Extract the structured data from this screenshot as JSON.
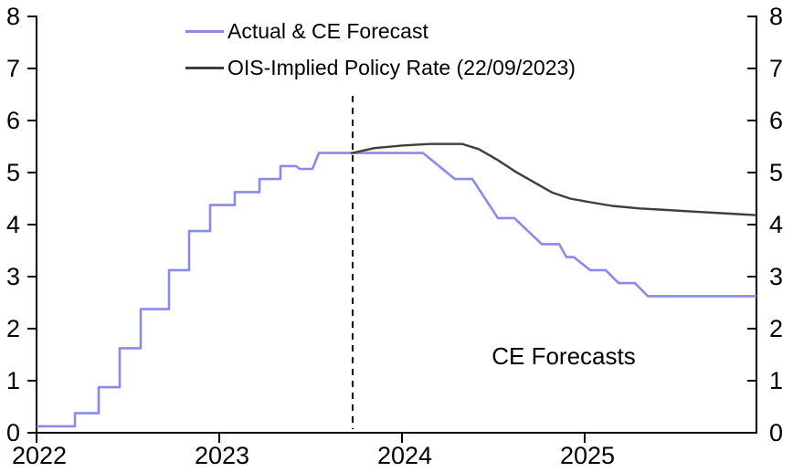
{
  "legend": {
    "items": [
      {
        "label": "Actual & CE Forecast",
        "color": "#8a89f0"
      },
      {
        "label": "OIS-Implied Policy Rate (22/09/2023)",
        "color": "#3e3e3e"
      }
    ]
  },
  "annotations": {
    "forecast_label": "CE Forecasts"
  },
  "colors": {
    "actual_line": "#8a89f0",
    "ois_line": "#3e3e3e",
    "axis": "#000000",
    "background": "#ffffff"
  },
  "chart_data": {
    "type": "line",
    "title": "",
    "xlabel": "",
    "ylabel": "",
    "grid": false,
    "legend_position": "top-left-inside",
    "dual_y_axis": true,
    "xlim": [
      2022,
      2025.94
    ],
    "ylim": [
      0,
      8
    ],
    "x_ticks": [
      2022,
      2023,
      2024,
      2025
    ],
    "y_ticks": [
      0,
      1,
      2,
      3,
      4,
      5,
      6,
      7,
      8
    ],
    "vline": {
      "x": 2023.73,
      "y_from": 0.07,
      "y_to": 6.47,
      "style": "dashed",
      "color": "#000000",
      "meaning": "forecast start 22/09/2023"
    },
    "annotation": {
      "text": "CE Forecasts",
      "x": 2024.885,
      "y": 1.46
    },
    "series": [
      {
        "name": "Actual & CE Forecast",
        "color": "#8a89f0",
        "width": 2.6,
        "points": [
          [
            2022.0,
            0.125
          ],
          [
            2022.21,
            0.125
          ],
          [
            2022.21,
            0.375
          ],
          [
            2022.34,
            0.375
          ],
          [
            2022.34,
            0.875
          ],
          [
            2022.455,
            0.875
          ],
          [
            2022.455,
            1.625
          ],
          [
            2022.57,
            1.625
          ],
          [
            2022.57,
            2.375
          ],
          [
            2022.725,
            2.375
          ],
          [
            2022.725,
            3.125
          ],
          [
            2022.835,
            3.125
          ],
          [
            2022.835,
            3.875
          ],
          [
            2022.95,
            3.875
          ],
          [
            2022.95,
            4.375
          ],
          [
            2023.085,
            4.375
          ],
          [
            2023.085,
            4.625
          ],
          [
            2023.22,
            4.625
          ],
          [
            2023.22,
            4.875
          ],
          [
            2023.335,
            4.875
          ],
          [
            2023.335,
            5.125
          ],
          [
            2023.42,
            5.125
          ],
          [
            2023.44,
            5.07
          ],
          [
            2023.51,
            5.07
          ],
          [
            2023.545,
            5.375
          ],
          [
            2024.115,
            5.375
          ],
          [
            2024.29,
            4.875
          ],
          [
            2024.385,
            4.875
          ],
          [
            2024.525,
            4.125
          ],
          [
            2024.615,
            4.125
          ],
          [
            2024.765,
            3.625
          ],
          [
            2024.86,
            3.625
          ],
          [
            2024.9,
            3.375
          ],
          [
            2024.94,
            3.375
          ],
          [
            2025.03,
            3.125
          ],
          [
            2025.115,
            3.125
          ],
          [
            2025.185,
            2.875
          ],
          [
            2025.275,
            2.875
          ],
          [
            2025.345,
            2.625
          ],
          [
            2025.94,
            2.625
          ]
        ]
      },
      {
        "name": "OIS-Implied Policy Rate (22/09/2023)",
        "color": "#3e3e3e",
        "width": 2.4,
        "points": [
          [
            2023.72,
            5.37
          ],
          [
            2023.85,
            5.47
          ],
          [
            2024.0,
            5.52
          ],
          [
            2024.15,
            5.55
          ],
          [
            2024.33,
            5.55
          ],
          [
            2024.42,
            5.45
          ],
          [
            2024.52,
            5.25
          ],
          [
            2024.62,
            5.02
          ],
          [
            2024.72,
            4.82
          ],
          [
            2024.82,
            4.62
          ],
          [
            2024.92,
            4.5
          ],
          [
            2025.03,
            4.43
          ],
          [
            2025.15,
            4.36
          ],
          [
            2025.3,
            4.31
          ],
          [
            2025.45,
            4.28
          ],
          [
            2025.6,
            4.25
          ],
          [
            2025.75,
            4.22
          ],
          [
            2025.94,
            4.18
          ]
        ]
      }
    ]
  }
}
